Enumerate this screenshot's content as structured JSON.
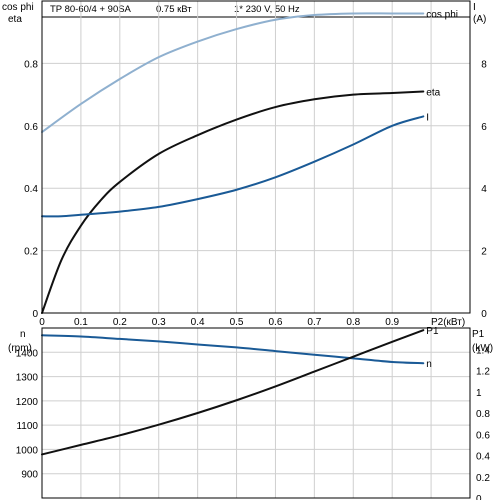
{
  "header": {
    "model": "TP 80-60/4 + 90SA",
    "power": "0.75 кВт",
    "supply": "1* 230 V, 50 Hz"
  },
  "colors": {
    "cosphi": "#8fb0cf",
    "eta": "#111111",
    "current": "#1a5a96",
    "n": "#1a5a96",
    "p1": "#111111"
  },
  "chart_data": [
    {
      "type": "line",
      "xlabel": "P2(кВт)",
      "xlim": [
        0,
        1.1
      ],
      "x_ticks": [
        "0",
        "0.1",
        "0.2",
        "0.3",
        "0.4",
        "0.5",
        "0.6",
        "0.7",
        "0.8",
        "0.9"
      ],
      "left_axis": {
        "labels": [
          "cos phi",
          "eta"
        ],
        "ylim": [
          0,
          1
        ],
        "ticks": [
          "0",
          "0.2",
          "0.4",
          "0.6",
          "0.8"
        ]
      },
      "right_axis": {
        "labels": [
          "I",
          "(A)"
        ],
        "ylim": [
          0,
          10
        ],
        "ticks": [
          "0",
          "2",
          "4",
          "6",
          "8"
        ]
      },
      "series": [
        {
          "name": "cos phi",
          "axis": "left",
          "x": [
            0,
            0.1,
            0.2,
            0.3,
            0.4,
            0.5,
            0.6,
            0.7,
            0.8,
            0.9,
            0.98
          ],
          "y": [
            0.58,
            0.67,
            0.75,
            0.82,
            0.87,
            0.91,
            0.94,
            0.955,
            0.96,
            0.96,
            0.96
          ]
        },
        {
          "name": "eta",
          "axis": "left",
          "x": [
            0,
            0.05,
            0.1,
            0.15,
            0.2,
            0.3,
            0.4,
            0.5,
            0.6,
            0.7,
            0.8,
            0.9,
            0.98
          ],
          "y": [
            0,
            0.17,
            0.28,
            0.36,
            0.42,
            0.51,
            0.57,
            0.62,
            0.66,
            0.685,
            0.7,
            0.705,
            0.71
          ]
        },
        {
          "name": "I",
          "axis": "right",
          "x": [
            0,
            0.05,
            0.1,
            0.2,
            0.3,
            0.4,
            0.5,
            0.6,
            0.7,
            0.8,
            0.9,
            0.98
          ],
          "y": [
            3.1,
            3.1,
            3.15,
            3.25,
            3.4,
            3.65,
            3.95,
            4.35,
            4.85,
            5.4,
            6.0,
            6.3
          ]
        }
      ]
    },
    {
      "type": "line",
      "xlim": [
        0,
        1.1
      ],
      "left_axis": {
        "labels": [
          "n",
          "(rpm)"
        ],
        "ylim": [
          800,
          1500
        ],
        "ticks": [
          "900",
          "1000",
          "1100",
          "1200",
          "1300",
          "1400"
        ]
      },
      "right_axis": {
        "labels": [
          "P1",
          "(kW)"
        ],
        "ylim": [
          0,
          1.6
        ],
        "ticks": [
          "0",
          "0.2",
          "0.4",
          "0.6",
          "0.8",
          "1",
          "1.2",
          "1.4"
        ]
      },
      "series": [
        {
          "name": "n",
          "axis": "left",
          "x": [
            0,
            0.1,
            0.2,
            0.3,
            0.4,
            0.5,
            0.6,
            0.7,
            0.8,
            0.9,
            0.98
          ],
          "y": [
            1470,
            1465,
            1455,
            1445,
            1432,
            1420,
            1405,
            1390,
            1375,
            1360,
            1355
          ]
        },
        {
          "name": "P1",
          "axis": "right",
          "x": [
            0,
            0.1,
            0.2,
            0.3,
            0.4,
            0.5,
            0.6,
            0.7,
            0.8,
            0.9,
            0.98
          ],
          "y": [
            0.41,
            0.5,
            0.59,
            0.69,
            0.8,
            0.92,
            1.05,
            1.19,
            1.33,
            1.47,
            1.58
          ]
        }
      ]
    }
  ]
}
